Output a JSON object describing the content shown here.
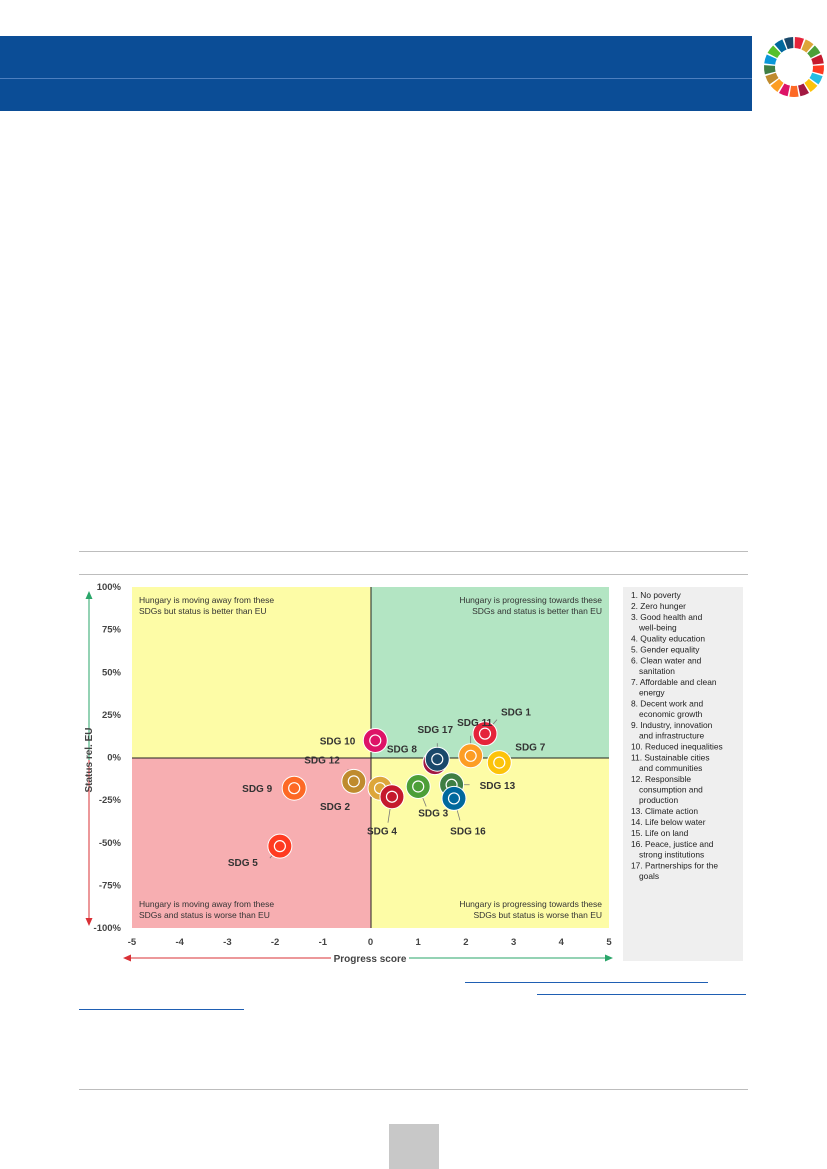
{
  "chart_data": {
    "type": "scatter",
    "xlabel": "Progress score",
    "ylabel": "Status rel. EU",
    "xlim": [
      -5,
      5
    ],
    "ylim": [
      -100,
      100
    ],
    "x_ticks": [
      "-5",
      "-4",
      "-3",
      "-2",
      "-1",
      "0",
      "1",
      "2",
      "3",
      "4",
      "5"
    ],
    "y_ticks": [
      "100%",
      "75%",
      "50%",
      "25%",
      "0%",
      "-25%",
      "-50%",
      "-75%",
      "-100%"
    ],
    "quadrants": {
      "top_left": [
        "Hungary is moving away from these",
        "SDGs but status is better than EU"
      ],
      "top_right": [
        "Hungary is progressing towards these",
        "SDGs and status is better than EU"
      ],
      "bottom_left": [
        "Hungary is moving away from these",
        "SDGs and status is worse than EU"
      ],
      "bottom_right": [
        "Hungary is progressing towards these",
        "SDGs but status is worse than EU"
      ]
    },
    "points": [
      {
        "label": "SDG 1",
        "x": 2.4,
        "y": 14,
        "color": "#e5243b"
      },
      {
        "label": "SDG 2",
        "x": 0.2,
        "y": -18,
        "color": "#dda63a"
      },
      {
        "label": "SDG 3",
        "x": 1.0,
        "y": -17,
        "color": "#4c9f38"
      },
      {
        "label": "SDG 4",
        "x": 0.45,
        "y": -23,
        "color": "#c5192d"
      },
      {
        "label": "SDG 5",
        "x": -1.9,
        "y": -52,
        "color": "#ff3a21"
      },
      {
        "label": "SDG 7",
        "x": 2.7,
        "y": -3,
        "color": "#fcc30b"
      },
      {
        "label": "SDG 8",
        "x": 1.35,
        "y": -3,
        "color": "#a21942"
      },
      {
        "label": "SDG 9",
        "x": -1.6,
        "y": -18,
        "color": "#fd6925"
      },
      {
        "label": "SDG 10",
        "x": 0.1,
        "y": 10,
        "color": "#dd1367"
      },
      {
        "label": "SDG 11",
        "x": 2.1,
        "y": 1,
        "color": "#fd9d24"
      },
      {
        "label": "SDG 12",
        "x": -0.35,
        "y": -14,
        "color": "#bf8b2e"
      },
      {
        "label": "SDG 13",
        "x": 1.7,
        "y": -16,
        "color": "#3f7e44"
      },
      {
        "label": "SDG 16",
        "x": 1.75,
        "y": -24,
        "color": "#00689d"
      },
      {
        "label": "SDG 17",
        "x": 1.4,
        "y": -1,
        "color": "#19486a"
      }
    ],
    "legend": [
      "1. No poverty",
      "2. Zero hunger",
      "3. Good health and well-being",
      "4. Quality education",
      "5. Gender equality",
      "6. Clean water and sanitation",
      "7. Affordable and clean energy",
      "8. Decent work and economic growth",
      "9. Industry, innovation and infrastructure",
      "10. Reduced inequalities",
      "11. Sustainable cities and communities",
      "12. Responsible consumption and production",
      "13. Climate action",
      "14. Life below water",
      "15. Life on land",
      "16. Peace, justice and strong institutions",
      "17. Partnerships for the goals"
    ],
    "legend_placement": "right",
    "grid": false
  },
  "colors": {
    "banner": "#0b4d96",
    "quadrant_good_good": "#b3e5c3",
    "quadrant_yellow": "#fdfca6",
    "quadrant_bad_bad": "#f7aeb1",
    "axis_green": "#2aa66a",
    "axis_red": "#d93036",
    "legend_bg": "#efefef",
    "link": "#1f5fb3"
  },
  "icons": {
    "logo": "sdg-color-wheel-icon"
  }
}
